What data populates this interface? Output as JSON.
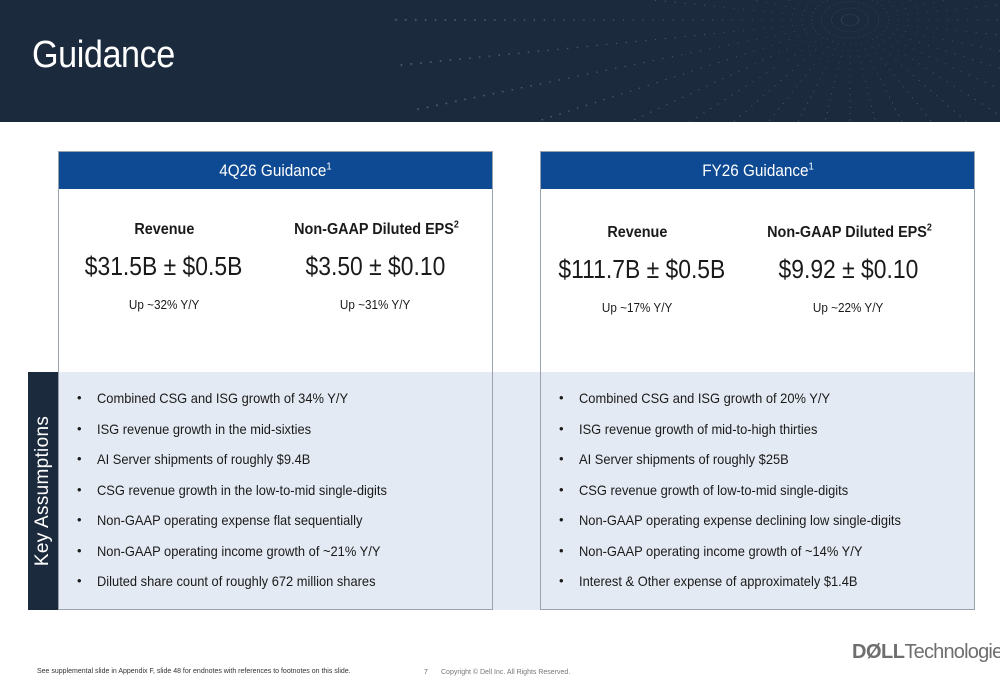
{
  "page": {
    "title": "Guidance",
    "key_assumptions_label": "Key Assumptions",
    "footnote": "See supplemental slide in Appendix F, slide 48 for endnotes with references to footnotes on this slide.",
    "page_number": "7",
    "copyright": "Copyright © Dell Inc. All Rights Reserved.",
    "logo": {
      "brand": "DØLL",
      "suffix": "Technologies"
    }
  },
  "colors": {
    "header_bg": "#1b2a3c",
    "panel_header_bg": "#0e4a94",
    "assumptions_bg": "#e4eaf3"
  },
  "panels": [
    {
      "title": "4Q26 Guidance",
      "title_footnote": "1",
      "metrics": [
        {
          "label": "Revenue",
          "label_footnote": "",
          "value": "$31.5B ± $0.5B",
          "growth": "Up ~32% Y/Y"
        },
        {
          "label": "Non-GAAP Diluted EPS",
          "label_footnote": "2",
          "value": "$3.50 ± $0.10",
          "growth": "Up ~31% Y/Y"
        }
      ],
      "assumptions": [
        "Combined CSG and ISG growth of 34% Y/Y",
        "ISG revenue growth in the mid-sixties",
        "AI Server shipments of roughly $9.4B",
        "CSG revenue growth in the low-to-mid single-digits",
        "Non-GAAP operating expense flat sequentially",
        "Non-GAAP operating income growth of ~21% Y/Y",
        "Diluted share count of roughly 672 million shares"
      ]
    },
    {
      "title": "FY26 Guidance",
      "title_footnote": "1",
      "metrics": [
        {
          "label": "Revenue",
          "label_footnote": "",
          "value": "$111.7B ± $0.5B",
          "growth": "Up ~17% Y/Y"
        },
        {
          "label": "Non-GAAP Diluted EPS",
          "label_footnote": "2",
          "value": "$9.92 ± $0.10",
          "growth": "Up ~22% Y/Y"
        }
      ],
      "assumptions": [
        "Combined CSG and ISG growth of 20% Y/Y",
        "ISG revenue growth of mid-to-high thirties",
        "AI Server shipments of roughly $25B",
        "CSG revenue growth of low-to-mid single-digits",
        "Non-GAAP operating expense declining low single-digits",
        "Non-GAAP operating income growth of ~14% Y/Y",
        "Interest & Other expense of approximately $1.4B"
      ]
    }
  ]
}
